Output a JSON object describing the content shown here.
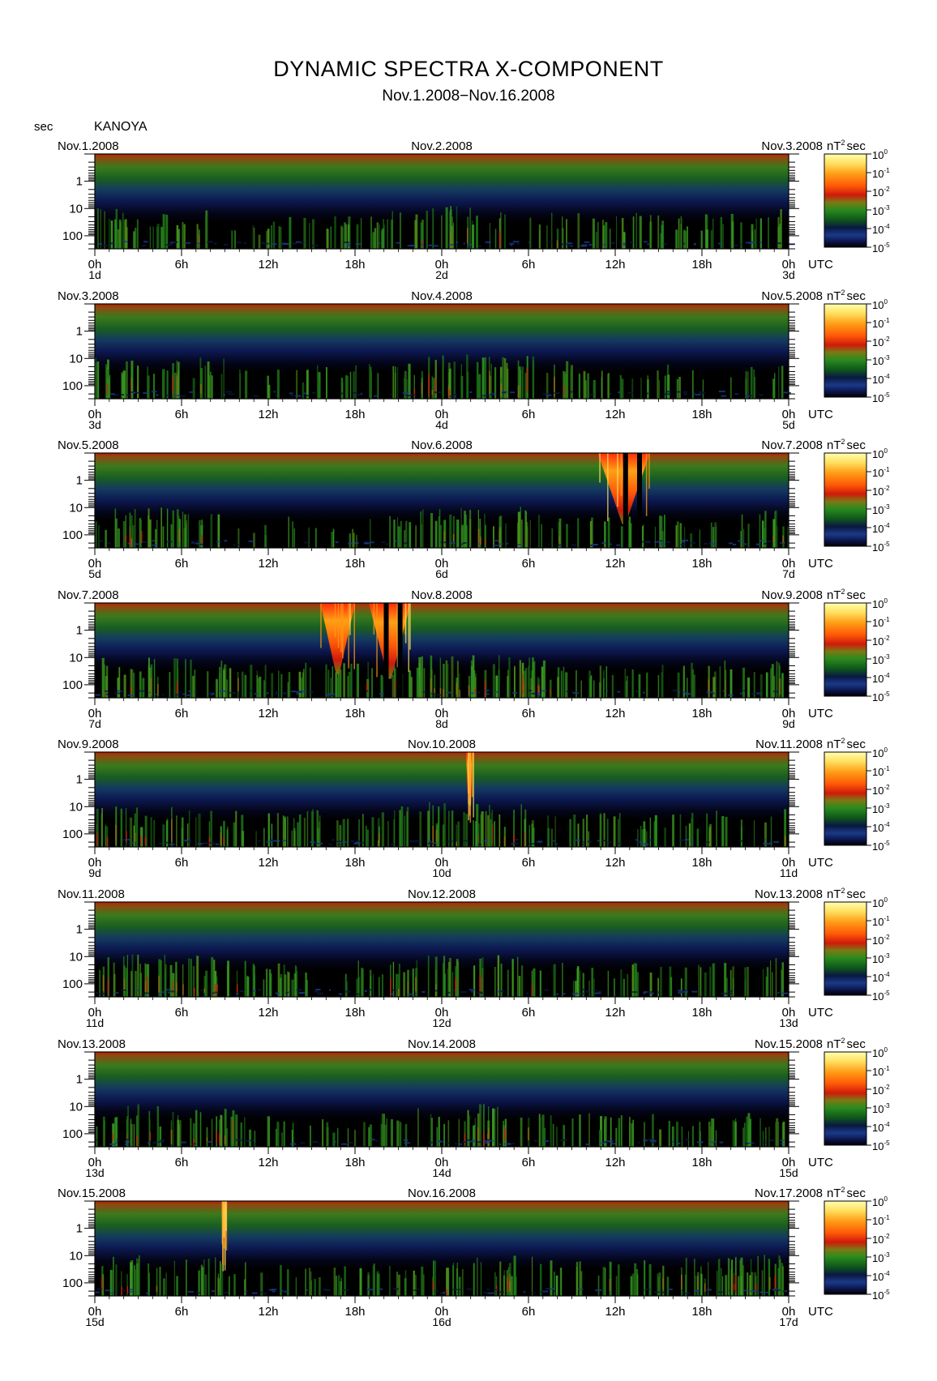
{
  "title": "DYNAMIC SPECTRA X-COMPONENT",
  "subtitle": "Nov.1.2008−Nov.16.2008",
  "station": "KANOYA",
  "y_unit": "sec",
  "colorbar_unit": "nT",
  "colorbar_unit_exp": "2",
  "colorbar_unit_tail": "sec",
  "time_unit": "UTC",
  "colormap": {
    "stops": [
      "#000000",
      "#0a1040",
      "#1a3a88",
      "#0f5a1a",
      "#2a8a1e",
      "#7a7a14",
      "#d01a0a",
      "#ff5a08",
      "#ff9a14",
      "#ffe060",
      "#ffffb0"
    ],
    "plot_background": "#000000",
    "top_band": "#a83008"
  },
  "chart_data": {
    "type": "heatmap",
    "x_ticks": [
      "0h",
      "6h",
      "12h",
      "18h",
      "0h",
      "6h",
      "12h",
      "18h",
      "0h"
    ],
    "y_ticks": [
      "1",
      "10",
      "100"
    ],
    "y_scale": "log",
    "y_range_sec": [
      0.1,
      300
    ],
    "colorbar_ticks": [
      {
        "base": "10",
        "exp": "0"
      },
      {
        "base": "10",
        "exp": "-1"
      },
      {
        "base": "10",
        "exp": "-2"
      },
      {
        "base": "10",
        "exp": "-3"
      },
      {
        "base": "10",
        "exp": "-4"
      },
      {
        "base": "10",
        "exp": "-5"
      }
    ],
    "colorbar_range_nT2sec": [
      1e-05,
      1
    ],
    "panels": [
      {
        "left_date": "Nov.1.2008",
        "mid_date": "Nov.2.2008",
        "right_date": "Nov.3.2008",
        "day_labels": [
          "1d",
          "2d",
          "3d"
        ],
        "activity": [
          0.55,
          0.5,
          0.45,
          0.35,
          0.4,
          0.5,
          0.55,
          0.5,
          0.35,
          0.25,
          0.2,
          0.25,
          0.25,
          0.3,
          0.3,
          0.35,
          0.4,
          0.35,
          0.3,
          0.35,
          0.45,
          0.5,
          0.55,
          0.55,
          0.6,
          0.6,
          0.55,
          0.5,
          0.45,
          0.4,
          0.45,
          0.45,
          0.45,
          0.4,
          0.4,
          0.35,
          0.4,
          0.45,
          0.4,
          0.35,
          0.35,
          0.35,
          0.4,
          0.4,
          0.35,
          0.35,
          0.4,
          0.55
        ],
        "bursts": []
      },
      {
        "left_date": "Nov.3.2008",
        "mid_date": "Nov.4.2008",
        "right_date": "Nov.5.2008",
        "day_labels": [
          "3d",
          "4d",
          "5d"
        ],
        "activity": [
          0.55,
          0.5,
          0.45,
          0.45,
          0.45,
          0.5,
          0.5,
          0.55,
          0.5,
          0.4,
          0.3,
          0.25,
          0.25,
          0.3,
          0.35,
          0.35,
          0.35,
          0.35,
          0.4,
          0.35,
          0.35,
          0.4,
          0.5,
          0.55,
          0.6,
          0.6,
          0.6,
          0.55,
          0.55,
          0.55,
          0.55,
          0.55,
          0.5,
          0.45,
          0.35,
          0.3,
          0.3,
          0.3,
          0.35,
          0.35,
          0.3,
          0.3,
          0.3,
          0.3,
          0.35,
          0.35,
          0.45,
          0.55
        ],
        "bursts": []
      },
      {
        "left_date": "Nov.5.2008",
        "mid_date": "Nov.6.2008",
        "right_date": "Nov.7.2008",
        "day_labels": [
          "5d",
          "6d",
          "7d"
        ],
        "activity": [
          0.45,
          0.5,
          0.5,
          0.5,
          0.5,
          0.5,
          0.5,
          0.45,
          0.4,
          0.3,
          0.25,
          0.2,
          0.3,
          0.35,
          0.25,
          0.2,
          0.2,
          0.2,
          0.2,
          0.25,
          0.3,
          0.4,
          0.5,
          0.55,
          0.55,
          0.55,
          0.55,
          0.55,
          0.55,
          0.55,
          0.55,
          0.5,
          0.45,
          0.35,
          0.3,
          0.3,
          0.3,
          0.3,
          0.3,
          0.35,
          0.3,
          0.3,
          0.3,
          0.3,
          0.35,
          0.35,
          0.45,
          0.5
        ],
        "bursts": [
          {
            "t0": 0.725,
            "t1": 0.8,
            "depth": 0.75,
            "gaps": [
              0.765,
              0.785
            ]
          }
        ]
      },
      {
        "left_date": "Nov.7.2008",
        "mid_date": "Nov.8.2008",
        "right_date": "Nov.9.2008",
        "day_labels": [
          "7d",
          "8d",
          "9d"
        ],
        "activity": [
          0.55,
          0.55,
          0.5,
          0.5,
          0.5,
          0.5,
          0.5,
          0.5,
          0.5,
          0.45,
          0.35,
          0.35,
          0.35,
          0.35,
          0.4,
          0.45,
          0.4,
          0.4,
          0.45,
          0.5,
          0.55,
          0.55,
          0.6,
          0.6,
          0.55,
          0.55,
          0.55,
          0.55,
          0.5,
          0.5,
          0.5,
          0.45,
          0.4,
          0.35,
          0.35,
          0.35,
          0.35,
          0.35,
          0.35,
          0.35,
          0.4,
          0.45,
          0.45,
          0.45,
          0.5,
          0.5,
          0.5,
          0.5
        ],
        "bursts": [
          {
            "t0": 0.325,
            "t1": 0.375,
            "depth": 0.75,
            "gaps": []
          },
          {
            "t0": 0.395,
            "t1": 0.455,
            "depth": 0.8,
            "gaps": [
              0.42,
              0.44
            ]
          }
        ]
      },
      {
        "left_date": "Nov.9.2008",
        "mid_date": "Nov.10.2008",
        "right_date": "Nov.11.2008",
        "day_labels": [
          "9d",
          "10d",
          "11d"
        ],
        "activity": [
          0.55,
          0.55,
          0.5,
          0.45,
          0.45,
          0.5,
          0.5,
          0.5,
          0.45,
          0.4,
          0.35,
          0.35,
          0.35,
          0.35,
          0.4,
          0.45,
          0.4,
          0.4,
          0.4,
          0.45,
          0.5,
          0.55,
          0.55,
          0.6,
          0.6,
          0.6,
          0.6,
          0.55,
          0.55,
          0.55,
          0.5,
          0.45,
          0.4,
          0.35,
          0.35,
          0.35,
          0.35,
          0.35,
          0.3,
          0.35,
          0.35,
          0.35,
          0.4,
          0.4,
          0.4,
          0.4,
          0.4,
          0.45
        ],
        "bursts": [
          {
            "t0": 0.535,
            "t1": 0.545,
            "depth": 0.55,
            "gaps": []
          }
        ]
      },
      {
        "left_date": "Nov.11.2008",
        "mid_date": "Nov.12.2008",
        "right_date": "Nov.13.2008",
        "day_labels": [
          "11d",
          "12d",
          "13d"
        ],
        "activity": [
          0.55,
          0.55,
          0.55,
          0.55,
          0.55,
          0.5,
          0.5,
          0.55,
          0.5,
          0.45,
          0.4,
          0.4,
          0.4,
          0.35,
          0.35,
          0.35,
          0.35,
          0.35,
          0.4,
          0.4,
          0.45,
          0.5,
          0.5,
          0.55,
          0.55,
          0.55,
          0.55,
          0.55,
          0.5,
          0.5,
          0.45,
          0.4,
          0.35,
          0.3,
          0.3,
          0.35,
          0.4,
          0.35,
          0.3,
          0.3,
          0.3,
          0.3,
          0.35,
          0.35,
          0.35,
          0.4,
          0.45,
          0.55
        ],
        "bursts": []
      },
      {
        "left_date": "Nov.13.2008",
        "mid_date": "Nov.14.2008",
        "right_date": "Nov.15.2008",
        "day_labels": [
          "13d",
          "14d",
          "15d"
        ],
        "activity": [
          0.55,
          0.55,
          0.55,
          0.55,
          0.5,
          0.5,
          0.5,
          0.5,
          0.5,
          0.45,
          0.35,
          0.3,
          0.25,
          0.25,
          0.25,
          0.25,
          0.25,
          0.25,
          0.3,
          0.35,
          0.4,
          0.45,
          0.5,
          0.55,
          0.55,
          0.55,
          0.55,
          0.55,
          0.5,
          0.5,
          0.45,
          0.4,
          0.35,
          0.35,
          0.35,
          0.35,
          0.35,
          0.35,
          0.35,
          0.35,
          0.35,
          0.35,
          0.35,
          0.35,
          0.35,
          0.35,
          0.35,
          0.4
        ],
        "bursts": []
      },
      {
        "left_date": "Nov.15.2008",
        "mid_date": "Nov.16.2008",
        "right_date": "Nov.17.2008",
        "day_labels": [
          "15d",
          "16d",
          "17d"
        ],
        "activity": [
          0.5,
          0.5,
          0.5,
          0.5,
          0.45,
          0.45,
          0.45,
          0.45,
          0.45,
          0.4,
          0.35,
          0.3,
          0.3,
          0.3,
          0.3,
          0.3,
          0.3,
          0.3,
          0.35,
          0.4,
          0.45,
          0.45,
          0.45,
          0.5,
          0.5,
          0.5,
          0.5,
          0.5,
          0.5,
          0.5,
          0.5,
          0.45,
          0.4,
          0.4,
          0.4,
          0.45,
          0.4,
          0.4,
          0.4,
          0.45,
          0.45,
          0.45,
          0.45,
          0.45,
          0.5,
          0.5,
          0.55,
          0.6
        ],
        "bursts": [
          {
            "t0": 0.183,
            "t1": 0.19,
            "depth": 0.5,
            "gaps": []
          }
        ]
      }
    ]
  }
}
